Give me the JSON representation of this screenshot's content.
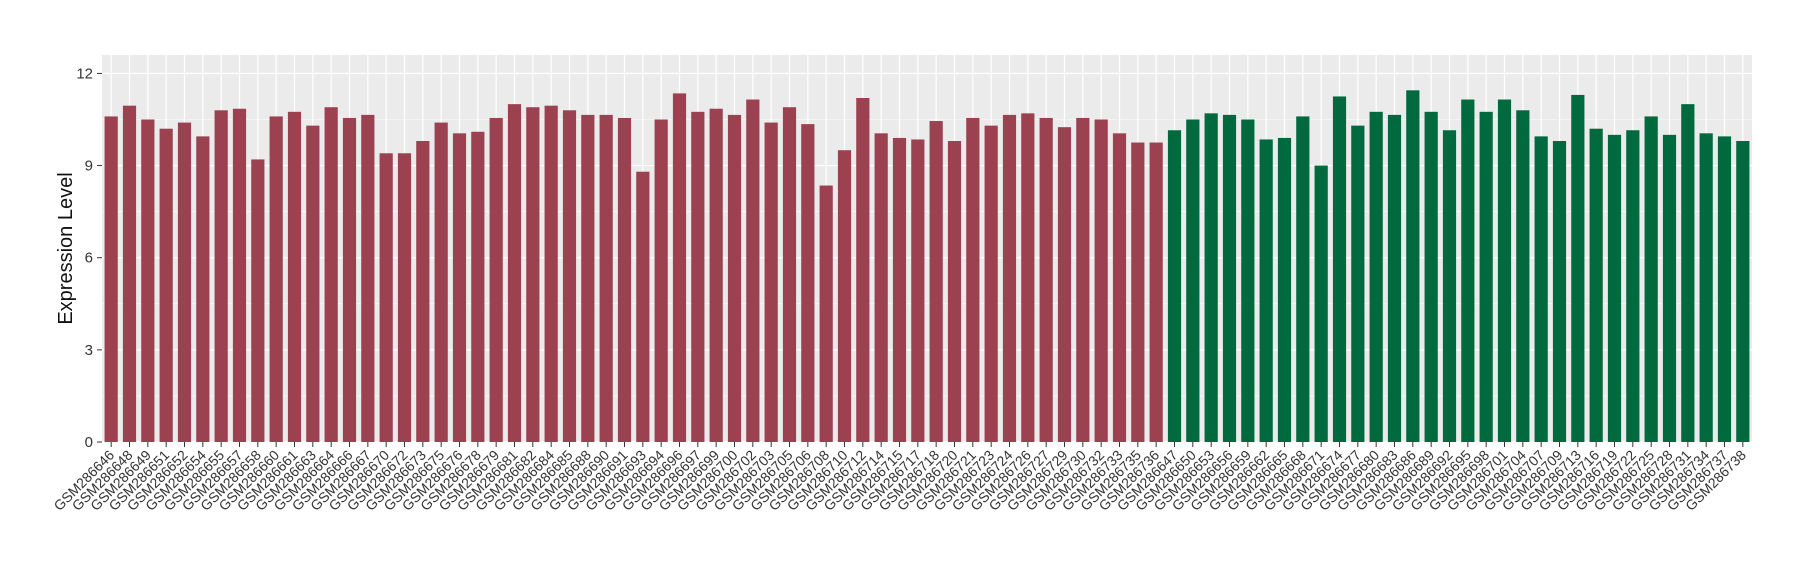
{
  "chart_data": {
    "type": "bar",
    "title": "",
    "xlabel": "",
    "ylabel": "Expression Level",
    "ylim": [
      0,
      12.6
    ],
    "yticks": [
      0,
      3,
      6,
      9,
      12
    ],
    "grid": true,
    "legend": "none",
    "colors": {
      "group1": "#9b4150",
      "group2": "#00693e",
      "panel": "#ebebeb",
      "grid": "#ffffff"
    },
    "categories": [
      "GSM286646",
      "GSM286648",
      "GSM286649",
      "GSM286651",
      "GSM286652",
      "GSM286654",
      "GSM286655",
      "GSM286657",
      "GSM286658",
      "GSM286660",
      "GSM286661",
      "GSM286663",
      "GSM286664",
      "GSM286666",
      "GSM286667",
      "GSM286670",
      "GSM286672",
      "GSM286673",
      "GSM286675",
      "GSM286676",
      "GSM286678",
      "GSM286679",
      "GSM286681",
      "GSM286682",
      "GSM286684",
      "GSM286685",
      "GSM286688",
      "GSM286690",
      "GSM286691",
      "GSM286693",
      "GSM286694",
      "GSM286696",
      "GSM286697",
      "GSM286699",
      "GSM286700",
      "GSM286702",
      "GSM286703",
      "GSM286705",
      "GSM286706",
      "GSM286708",
      "GSM286710",
      "GSM286712",
      "GSM286714",
      "GSM286715",
      "GSM286717",
      "GSM286718",
      "GSM286720",
      "GSM286721",
      "GSM286723",
      "GSM286724",
      "GSM286726",
      "GSM286727",
      "GSM286729",
      "GSM286730",
      "GSM286732",
      "GSM286733",
      "GSM286735",
      "GSM286736",
      "GSM286647",
      "GSM286650",
      "GSM286653",
      "GSM286656",
      "GSM286659",
      "GSM286662",
      "GSM286665",
      "GSM286668",
      "GSM286671",
      "GSM286674",
      "GSM286677",
      "GSM286680",
      "GSM286683",
      "GSM286686",
      "GSM286689",
      "GSM286692",
      "GSM286695",
      "GSM286698",
      "GSM286701",
      "GSM286704",
      "GSM286707",
      "GSM286709",
      "GSM286713",
      "GSM286716",
      "GSM286719",
      "GSM286722",
      "GSM286725",
      "GSM286728",
      "GSM286731",
      "GSM286734",
      "GSM286737",
      "GSM286738"
    ],
    "values": [
      10.6,
      10.95,
      10.5,
      10.2,
      10.4,
      9.95,
      10.8,
      10.85,
      9.2,
      10.6,
      10.75,
      10.3,
      10.9,
      10.55,
      10.65,
      9.4,
      9.4,
      9.8,
      10.4,
      10.05,
      10.1,
      10.55,
      11.0,
      10.9,
      10.95,
      10.8,
      10.65,
      10.65,
      10.55,
      8.8,
      10.5,
      11.35,
      10.75,
      10.85,
      10.65,
      11.15,
      10.4,
      10.9,
      10.35,
      8.35,
      9.5,
      11.2,
      10.05,
      9.9,
      9.85,
      10.45,
      9.8,
      10.55,
      10.3,
      10.65,
      10.7,
      10.55,
      10.25,
      10.55,
      10.5,
      10.05,
      9.75,
      9.75,
      10.15,
      10.5,
      10.7,
      10.65,
      10.5,
      9.85,
      9.9,
      10.6,
      9.0,
      11.25,
      10.3,
      10.75,
      10.65,
      11.45,
      10.75,
      10.15,
      11.15,
      10.75,
      11.15,
      10.8,
      9.95,
      9.8,
      11.3,
      10.2,
      10.0,
      10.15,
      10.6,
      10.0,
      11.0,
      10.05,
      9.95,
      9.8
    ],
    "group_sizes": [
      58,
      32
    ]
  }
}
